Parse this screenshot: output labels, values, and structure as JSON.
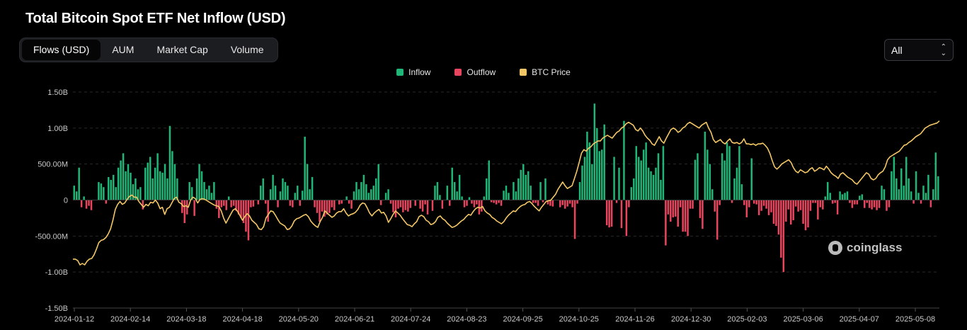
{
  "header": {
    "title": "Total Bitcoin Spot ETF Net Inflow (USD)"
  },
  "tabs": [
    {
      "label": "Flows (USD)",
      "active": true
    },
    {
      "label": "AUM",
      "active": false
    },
    {
      "label": "Market Cap",
      "active": false
    },
    {
      "label": "Volume",
      "active": false
    }
  ],
  "range_select": {
    "value": "All"
  },
  "watermark": {
    "text": "coinglass"
  },
  "colors": {
    "inflow": "#1fb677",
    "outflow": "#e8455f",
    "btc_price": "#f3c666",
    "grid": "#2a2a2a",
    "axis_text": "#c9c9c9"
  },
  "chart_data": {
    "type": "bar",
    "yticks": [
      "1.50B",
      "1.00B",
      "500.00M",
      "0",
      "-500.00M",
      "-1.00B",
      "-1.50B"
    ],
    "ylim": [
      -1500,
      1500
    ],
    "y_unit": "USD millions",
    "xticks": [
      "2024-01-12",
      "2024-02-14",
      "2024-03-18",
      "2024-04-18",
      "2024-05-20",
      "2024-06-21",
      "2024-07-24",
      "2024-08-23",
      "2024-09-25",
      "2024-10-25",
      "2024-11-26",
      "2024-12-30",
      "2025-02-03",
      "2025-03-06",
      "2025-04-07",
      "2025-05-08"
    ],
    "legend": [
      {
        "name": "Inflow",
        "color": "#1fb677"
      },
      {
        "name": "Outflow",
        "color": "#e8455f"
      },
      {
        "name": "BTC Price",
        "color": "#f3c666"
      }
    ],
    "legend_position": "top-center",
    "grid": true,
    "series": [
      {
        "name": "Net Flow",
        "values": [
          200,
          120,
          450,
          -100,
          50,
          -120,
          -80,
          -140,
          0,
          0,
          250,
          230,
          180,
          -50,
          320,
          280,
          350,
          180,
          450,
          550,
          650,
          400,
          500,
          380,
          220,
          300,
          150,
          180,
          -130,
          450,
          520,
          600,
          300,
          450,
          650,
          400,
          380,
          500,
          300,
          1030,
          680,
          500,
          300,
          0,
          -180,
          -320,
          -200,
          250,
          180,
          -220,
          300,
          500,
          400,
          250,
          150,
          200,
          100,
          250,
          -120,
          -250,
          -100,
          -80,
          -140,
          50,
          -100,
          -80,
          -150,
          -200,
          -250,
          -320,
          -440,
          -560,
          -100,
          -90,
          0,
          -60,
          200,
          300,
          -50,
          -300,
          150,
          350,
          200,
          -100,
          120,
          300,
          250,
          200,
          -80,
          -100,
          100,
          200,
          -80,
          130,
          880,
          500,
          150,
          320,
          -100,
          -180,
          -300,
          -160,
          -230,
          -200,
          -180,
          -100,
          -140,
          0,
          -60,
          -50,
          0,
          50,
          -50,
          -120,
          120,
          250,
          150,
          250,
          350,
          220,
          100,
          150,
          200,
          300,
          500,
          -70,
          0,
          100,
          150,
          -50,
          -170,
          -240,
          -120,
          -100,
          -170,
          -140,
          -160,
          -110,
          0,
          -80,
          0,
          -120,
          -160,
          -60,
          -200,
          0,
          -150,
          200,
          250,
          70,
          -120,
          0,
          200,
          -80,
          450,
          250,
          120,
          350,
          50,
          -100,
          -80,
          40,
          -50,
          -100,
          -60,
          -200,
          -160,
          50,
          300,
          550,
          -30,
          -40,
          -60,
          -40,
          -80,
          130,
          200,
          100,
          0,
          250,
          120,
          300,
          420,
          500,
          350,
          400,
          200,
          -40,
          -40,
          -80,
          250,
          -30,
          300,
          -60,
          -80,
          -90,
          0,
          0,
          -100,
          -70,
          -120,
          -90,
          -50,
          -100,
          -540,
          -50,
          250,
          480,
          600,
          950,
          800,
          500,
          1340,
          1000,
          680,
          700,
          1050,
          -350,
          -380,
          -370,
          600,
          -40,
          450,
          -390,
          1100,
          -500,
          -100,
          180,
          300,
          750,
          600,
          550,
          700,
          800,
          450,
          400,
          350,
          450,
          650,
          280,
          750,
          -630,
          -200,
          -300,
          -240,
          -230,
          -370,
          -100,
          -440,
          -440,
          -500,
          -120,
          -120,
          560,
          650,
          -250,
          -400,
          950,
          700,
          500,
          150,
          -160,
          -550,
          -70,
          650,
          550,
          800,
          750,
          -40,
          300,
          450,
          750,
          220,
          -70,
          -240,
          -100,
          580,
          -50,
          -60,
          -210,
          -150,
          -80,
          -120,
          -210,
          -170,
          -330,
          -360,
          -480,
          -800,
          -1000,
          -300,
          -130,
          -340,
          -280,
          -90,
          -160,
          -140,
          -330,
          -420,
          -380,
          -150,
          -40,
          -40,
          -270,
          -100,
          -130,
          50,
          250,
          100,
          -50,
          -40,
          -200,
          120,
          80,
          100,
          120,
          -40,
          -110,
          -60,
          -60,
          60,
          80,
          -110,
          -40,
          -110,
          -130,
          -100,
          -140,
          -110,
          200,
          150,
          -150,
          -100,
          400,
          600,
          300,
          150,
          440,
          200,
          600,
          300,
          120,
          -50,
          400,
          100,
          -50,
          200,
          100,
          350,
          -100,
          150,
          660,
          330
        ],
        "note_colors": "positive values rendered as Inflow, negative as Outflow"
      },
      {
        "name": "BTC Price",
        "values": [
          -820,
          -820,
          -840,
          -900,
          -880,
          -900,
          -850,
          -820,
          -810,
          -760,
          -680,
          -590,
          -560,
          -550,
          -520,
          -470,
          -400,
          -280,
          -130,
          -60,
          -20,
          -60,
          -40,
          10,
          50,
          70,
          40,
          40,
          -20,
          -60,
          -100,
          -60,
          -80,
          -30,
          -40,
          0,
          -40,
          -120,
          -100,
          -200,
          -120,
          -100,
          -40,
          20,
          40,
          -30,
          -50,
          -90,
          -80,
          -100,
          0,
          40,
          20,
          -40,
          10,
          20,
          10,
          -10,
          -30,
          -50,
          -70,
          -80,
          -90,
          -150,
          -250,
          -320,
          -260,
          -200,
          -140,
          -120,
          -160,
          -220,
          -280,
          -230,
          -190,
          -220,
          -280,
          -310,
          -340,
          -400,
          -410,
          -370,
          -250,
          -200,
          -150,
          -160,
          -210,
          -270,
          -320,
          -340,
          -360,
          -410,
          -400,
          -360,
          -290,
          -260,
          -250,
          -230,
          -210,
          -200,
          -230,
          -290,
          -330,
          -360,
          -380,
          -300,
          -240,
          -150,
          -180,
          -210,
          -240,
          -220,
          -180,
          -160,
          -160,
          -120,
          -180,
          -220,
          -200,
          -190,
          -170,
          -130,
          -70,
          -40,
          -50,
          -110,
          -180,
          -220,
          -180,
          -150,
          -130,
          -180,
          -170,
          -220,
          -310,
          -260,
          -200,
          -150,
          -180,
          -210,
          -260,
          -300,
          -340,
          -350,
          -370,
          -330,
          -300,
          -230,
          -210,
          -230,
          -280,
          -300,
          -340,
          -330,
          -300,
          -240,
          -220,
          -260,
          -280,
          -320,
          -350,
          -380,
          -370,
          -350,
          -320,
          -290,
          -270,
          -230,
          -200,
          -210,
          -160,
          -120,
          -100,
          -110,
          -90,
          -150,
          -180,
          -200,
          -240,
          -260,
          -290,
          -310,
          -330,
          -300,
          -250,
          -210,
          -180,
          -150,
          -160,
          -120,
          -90,
          -70,
          -60,
          -30,
          -20,
          -50,
          -90,
          -120,
          -150,
          -100,
          -60,
          -20,
          -10,
          0,
          40,
          80,
          150,
          200,
          250,
          200,
          160,
          180,
          200,
          300,
          400,
          520,
          650,
          700,
          680,
          720,
          740,
          780,
          800,
          820,
          820,
          860,
          880,
          900,
          880,
          860,
          900,
          940,
          960,
          1000,
          1020,
          1060,
          1080,
          1060,
          1040,
          980,
          960,
          1000,
          960,
          900,
          860,
          830,
          780,
          760,
          820,
          880,
          820,
          790,
          860,
          920,
          980,
          1000,
          980,
          940,
          960,
          1000,
          1020,
          1060,
          1080,
          1060,
          1040,
          1020,
          1000,
          1040,
          1060,
          1080,
          1000,
          940,
          840,
          800,
          820,
          840,
          800,
          780,
          820,
          850,
          800,
          790,
          800,
          780,
          800,
          850,
          780,
          780,
          770,
          780,
          760,
          780,
          780,
          790,
          760,
          720,
          650,
          550,
          460,
          430,
          460,
          500,
          520,
          540,
          560,
          520,
          450,
          400,
          380,
          420,
          400,
          380,
          390,
          430,
          450,
          400,
          420,
          450,
          440,
          420,
          470,
          430,
          380,
          350,
          330,
          300,
          360,
          380,
          350,
          320,
          300,
          280,
          240,
          220,
          260,
          300,
          340,
          380,
          360,
          300,
          280,
          300,
          350,
          380,
          400,
          460,
          560,
          600,
          620,
          640,
          660,
          680,
          720,
          760,
          770,
          800,
          820,
          850,
          880,
          900,
          920,
          960,
          1000,
          1020,
          1040,
          1050,
          1060,
          1070,
          1100
        ]
      }
    ]
  }
}
